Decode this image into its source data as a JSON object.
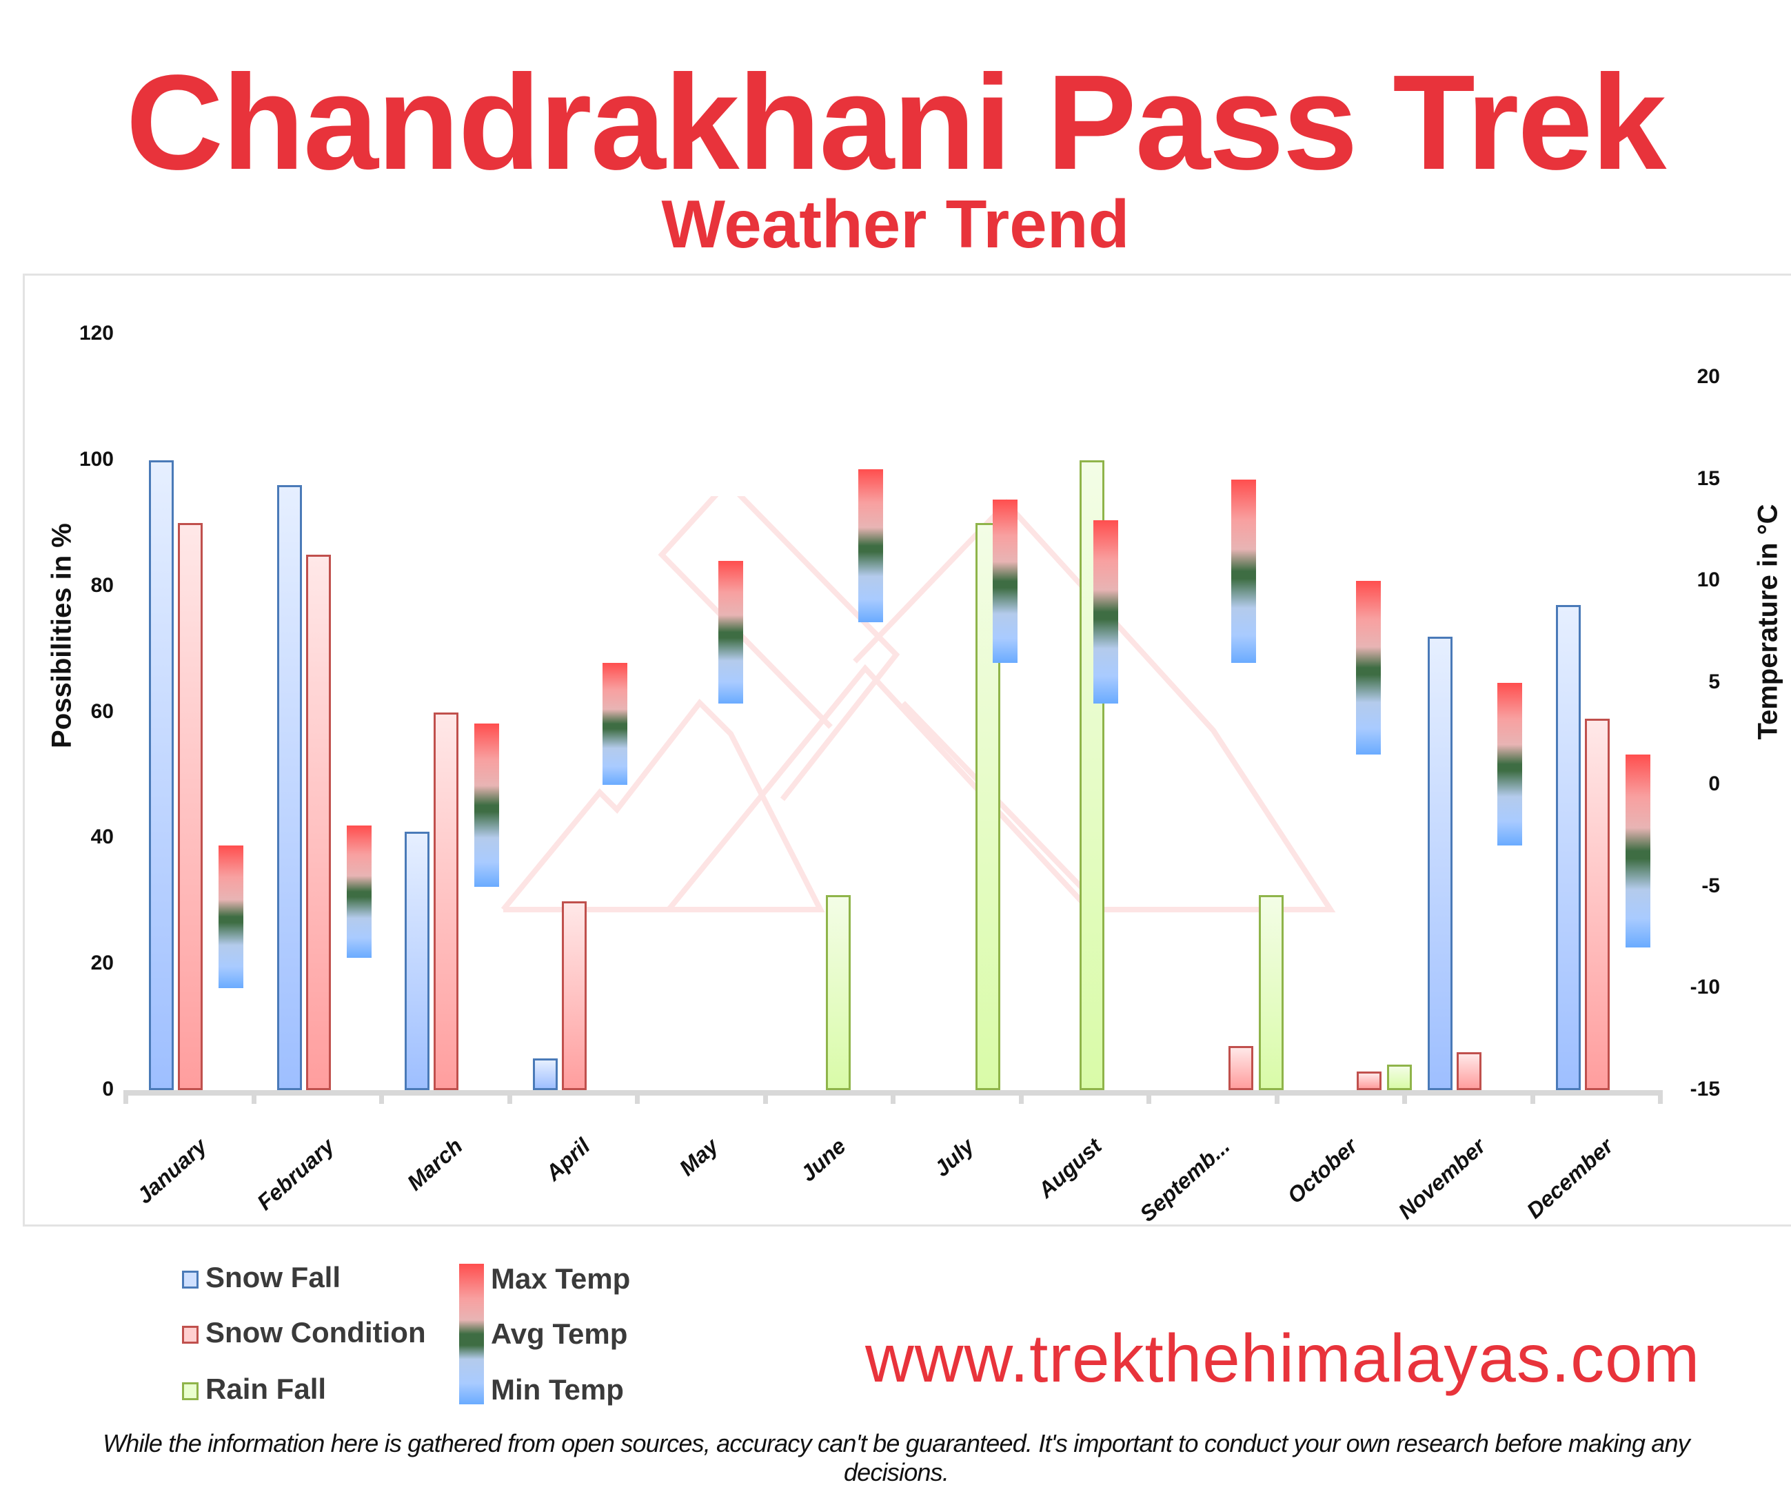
{
  "header": {
    "title": "Chandrakhani Pass Trek",
    "subtitle": "Weather Trend"
  },
  "axes": {
    "left_label": "Possibilities in %",
    "right_label": "Temperature in °C",
    "left_ticks": [
      "120",
      "100",
      "80",
      "60",
      "40",
      "20",
      "0"
    ],
    "right_ticks": [
      "20",
      "15",
      "10",
      "5",
      "0",
      "-5",
      "-10",
      "-15"
    ]
  },
  "legend": {
    "snow_fall": "Snow Fall",
    "snow_condition": "Snow Condition",
    "rain_fall": "Rain Fall",
    "max_temp": "Max Temp",
    "avg_temp": "Avg Temp",
    "min_temp": "Min Temp"
  },
  "footer": {
    "website": "www.trekthehimalayas.com",
    "disclaimer": "While the information here is gathered from open sources, accuracy can't be guaranteed. It's important to conduct your own research before making any decisions."
  },
  "colors": {
    "brand_red": "#e8333b",
    "snow_fall": "#4a7ab8",
    "snow_condition": "#c0504d",
    "rain_fall": "#8fb44a",
    "max_temp": "#ff4e4e",
    "avg_temp": "#3e6d43",
    "min_temp": "#6aabff"
  },
  "chart_data": {
    "type": "bar",
    "title": "Chandrakhani Pass Trek",
    "subtitle": "Weather Trend",
    "categories": [
      "January",
      "February",
      "March",
      "April",
      "May",
      "June",
      "July",
      "August",
      "Septemb...",
      "October",
      "November",
      "December"
    ],
    "xlabel": "",
    "ylabel": "Possibilities in %",
    "y2label": "Temperature in °C",
    "ylim": [
      0,
      120
    ],
    "y2lim": [
      -15,
      20
    ],
    "grid": false,
    "legend_position": "bottom-left",
    "series": [
      {
        "name": "Snow Fall",
        "axis": "left",
        "values": [
          100,
          96,
          41,
          5,
          0,
          0,
          0,
          0,
          0,
          0,
          72,
          77
        ]
      },
      {
        "name": "Snow Condition",
        "axis": "left",
        "values": [
          90,
          85,
          60,
          30,
          0,
          0,
          0,
          0,
          7,
          3,
          6,
          59
        ]
      },
      {
        "name": "Rain Fall",
        "axis": "left",
        "values": [
          0,
          0,
          0,
          0,
          0,
          31,
          90,
          100,
          31,
          4,
          0,
          0
        ]
      },
      {
        "name": "Max Temp",
        "axis": "right",
        "values": [
          -3,
          -2,
          3,
          6,
          11,
          15.5,
          14,
          13,
          15,
          10,
          5,
          1.5
        ]
      },
      {
        "name": "Avg Temp",
        "axis": "right",
        "values": [
          -6.5,
          -5,
          -1,
          3,
          7.5,
          12,
          10,
          8.5,
          10.5,
          6,
          1,
          -3
        ]
      },
      {
        "name": "Min Temp",
        "axis": "right",
        "values": [
          -10,
          -8.5,
          -5,
          0,
          4,
          8,
          6,
          4,
          6,
          1.5,
          -3,
          -8
        ]
      }
    ]
  }
}
